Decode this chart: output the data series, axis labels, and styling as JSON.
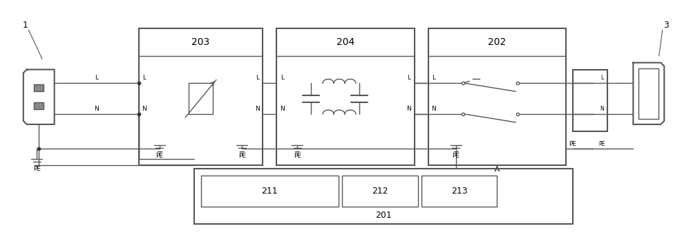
{
  "title": "",
  "bg_color": "#ffffff",
  "line_color": "#555555",
  "box_color": "#555555",
  "dot_color": "#333333",
  "colored_line_L": "#4444cc",
  "colored_line_N": "#4444cc",
  "colored_line_PE": "#4444cc",
  "fig_width": 10.0,
  "fig_height": 3.4,
  "dpi": 100,
  "label_1": "1",
  "label_3": "3",
  "label_203": "203",
  "label_204": "204",
  "label_202": "202",
  "label_201": "201",
  "label_211": "211",
  "label_212": "212",
  "label_213": "213",
  "label_L": "L",
  "label_N": "N",
  "label_PE": "PE"
}
